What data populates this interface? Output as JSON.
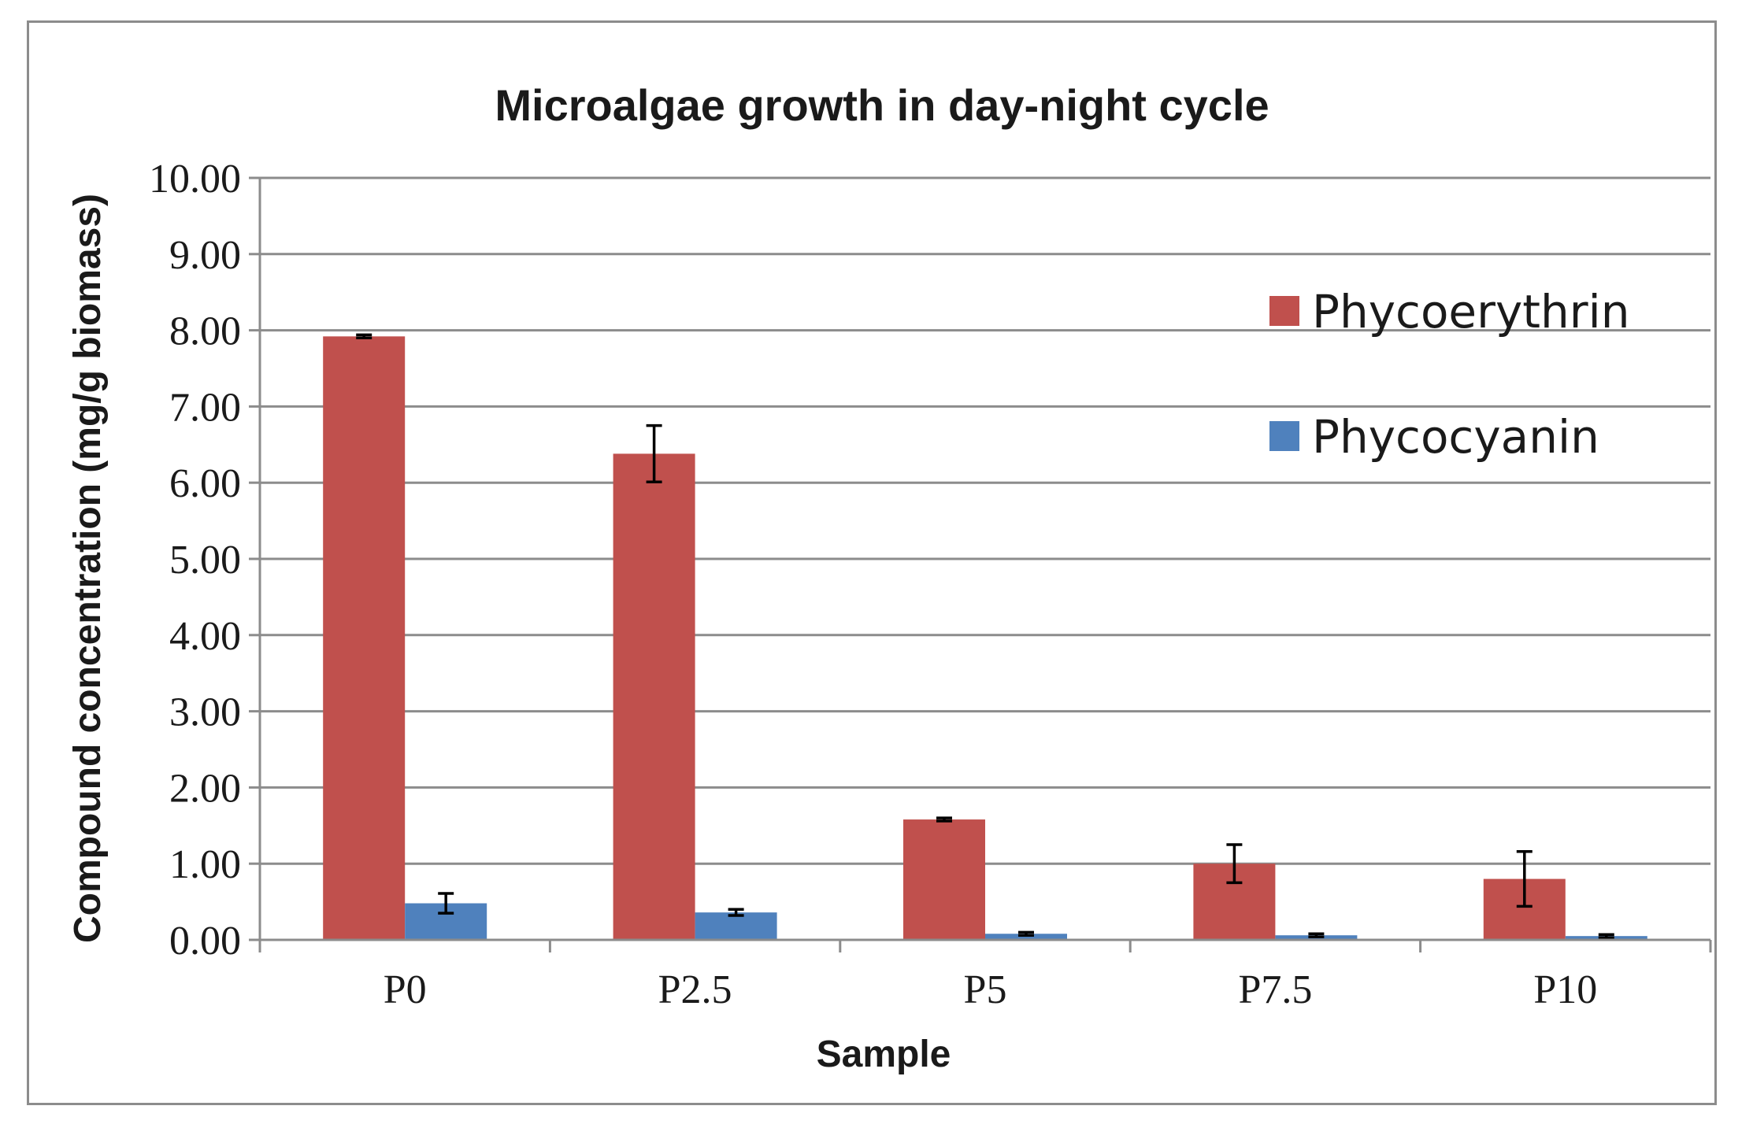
{
  "chart_data": {
    "type": "bar",
    "title": "Microalgae growth in day-night cycle",
    "xlabel": "Sample",
    "ylabel": "Compound concentration  (mg/g biomass)",
    "categories": [
      "P0",
      "P2.5",
      "P5",
      "P7.5",
      "P10"
    ],
    "ylim": [
      0,
      10
    ],
    "y_ticks": [
      "0.00",
      "1.00",
      "2.00",
      "3.00",
      "4.00",
      "5.00",
      "6.00",
      "7.00",
      "8.00",
      "9.00",
      "10.00"
    ],
    "grid": true,
    "legend_position": "top-right",
    "series": [
      {
        "name": "Phycoerythrin",
        "color": "#c0504d",
        "values": [
          7.92,
          6.38,
          1.58,
          1.0,
          0.8
        ],
        "errors": [
          0.02,
          0.37,
          0.02,
          0.25,
          0.36
        ]
      },
      {
        "name": "Phycocyanin",
        "color": "#4f81bd",
        "values": [
          0.48,
          0.36,
          0.08,
          0.06,
          0.05
        ],
        "errors": [
          0.13,
          0.04,
          0.02,
          0.02,
          0.02
        ]
      }
    ]
  }
}
